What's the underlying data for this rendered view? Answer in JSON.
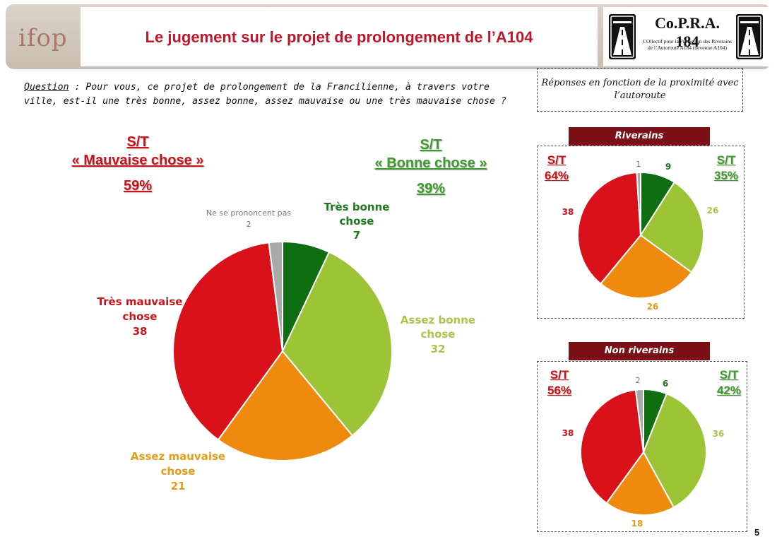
{
  "header": {
    "logo": "ifop",
    "title": "Le jugement sur le projet de prolongement de l’A104",
    "partner_name": "Co.P.R.A. 184",
    "partner_sub1": "COllectif pour la Protection des Riverains",
    "partner_sub2": "de l’Autoroute A184 (devenue A104)"
  },
  "question": {
    "label": "Question",
    "text": " : Pour vous, ce projet de prolongement de la Francilienne, à travers votre ville, est-il une très bonne, assez bonne, assez mauvaise ou une très mauvaise chose ?"
  },
  "reponses_note": "Réponses en fonction de la proximité avec l’autoroute",
  "summary": {
    "mauvaise_line1": "S/T",
    "mauvaise_line2": "« Mauvaise chose »",
    "mauvaise_value": "59%",
    "bonne_line1": "S/T",
    "bonne_line2": "« Bonne chose »",
    "bonne_value": "39%"
  },
  "colors": {
    "tres_bonne": "#0f6e12",
    "assez_bonne": "#9dc437",
    "assez_mauvaise": "#ee8a0e",
    "tres_mauvaise": "#d9111a",
    "nsp": "#a9a9a9",
    "band": "#7b1016",
    "label_red": "#c8151b",
    "label_green": "#3f9a2e",
    "label_dark_green": "#1c7a1c",
    "label_orange": "#e49b1a",
    "label_light_green": "#a9c64a",
    "label_gray": "#7a7a7a"
  },
  "chart_data": [
    {
      "type": "pie",
      "categories": [
        "Très bonne chose",
        "Assez bonne chose",
        "Assez mauvaise chose",
        "Très mauvaise chose",
        "Ne se prononcent pas"
      ],
      "values": [
        7,
        32,
        21,
        38,
        2
      ],
      "labels": [
        {
          "line1": "Très bonne",
          "line2": "chose",
          "value": "7"
        },
        {
          "line1": "Assez bonne",
          "line2": "chose",
          "value": "32"
        },
        {
          "line1": "Assez mauvaise",
          "line2": "chose",
          "value": "21"
        },
        {
          "line1": "Très mauvaise",
          "line2": "chose",
          "value": "38"
        },
        {
          "line1": "Ne se prononcent pas",
          "line2": "",
          "value": "2"
        }
      ]
    },
    {
      "type": "pie",
      "title": "Riverains",
      "categories": [
        "Très bonne chose",
        "Assez bonne chose",
        "Assez mauvaise chose",
        "Très mauvaise chose",
        "Ne se prononcent pas"
      ],
      "values": [
        9,
        26,
        26,
        38,
        1
      ],
      "st_mauvaise": {
        "label": "S/T",
        "value": "64%"
      },
      "st_bonne": {
        "label": "S/T",
        "value": "35%"
      },
      "value_labels": [
        "9",
        "26",
        "26",
        "38",
        "1"
      ]
    },
    {
      "type": "pie",
      "title": "Non riverains",
      "categories": [
        "Très bonne chose",
        "Assez bonne chose",
        "Assez mauvaise chose",
        "Très mauvaise chose",
        "Ne se prononcent pas"
      ],
      "values": [
        6,
        36,
        18,
        38,
        2
      ],
      "st_mauvaise": {
        "label": "S/T",
        "value": "56%"
      },
      "st_bonne": {
        "label": "S/T",
        "value": "42%"
      },
      "value_labels": [
        "6",
        "36",
        "18",
        "38",
        "2"
      ]
    }
  ],
  "page_number": "5"
}
